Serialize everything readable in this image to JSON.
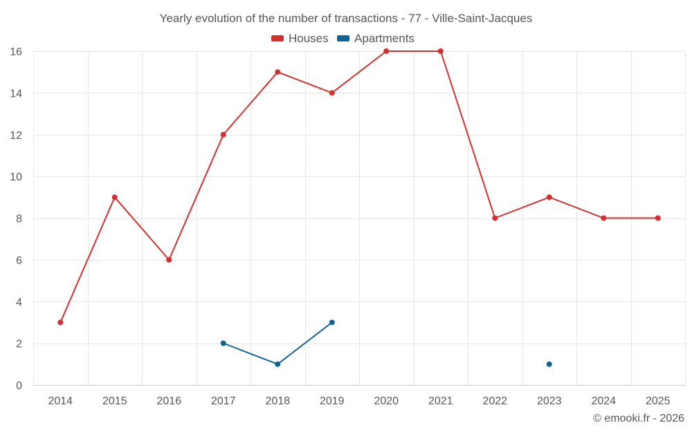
{
  "chart_data": {
    "type": "line",
    "title": "Yearly evolution of the number of transactions - 77 - Ville-Saint-Jacques",
    "categories": [
      "2014",
      "2015",
      "2016",
      "2017",
      "2018",
      "2019",
      "2020",
      "2021",
      "2022",
      "2023",
      "2024",
      "2025"
    ],
    "ylim": [
      0,
      16
    ],
    "yticks": [
      0,
      2,
      4,
      6,
      8,
      10,
      12,
      14,
      16
    ],
    "grid": true,
    "legend_position": "top-center",
    "series": [
      {
        "name": "Houses",
        "color": "#d32f2f",
        "values": [
          3,
          9,
          6,
          12,
          15,
          14,
          16,
          16,
          8,
          9,
          8,
          8
        ]
      },
      {
        "name": "Apartments",
        "color": "#0f6496",
        "values": [
          null,
          null,
          null,
          2,
          1,
          3,
          null,
          null,
          null,
          1,
          null,
          null
        ]
      }
    ],
    "credit": "© emooki.fr - 2026"
  }
}
